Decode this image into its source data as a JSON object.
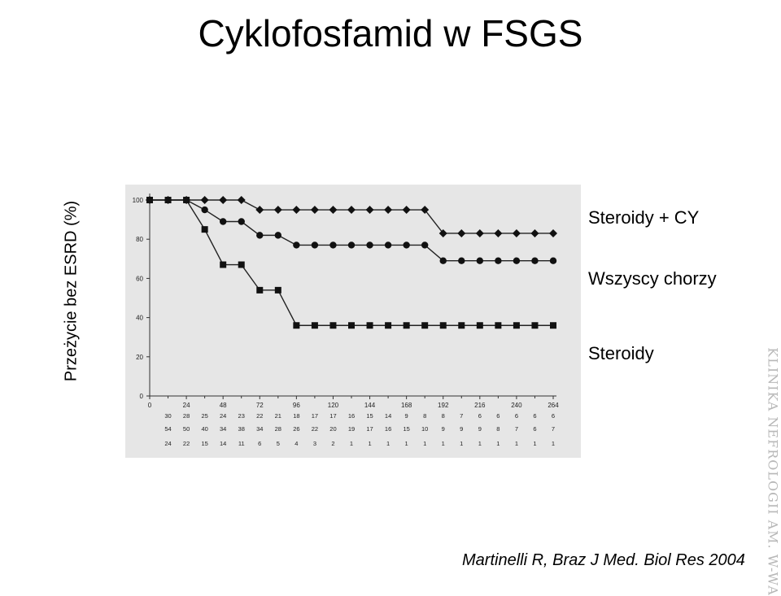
{
  "slide": {
    "title": "Cyklofosfamid w FSGS",
    "citation": "Martinelli R, Braz J Med. Biol Res 2004",
    "watermark": "KLINIKA NEFROLOGII AM. W-WA"
  },
  "chart_data": {
    "type": "line",
    "title": "",
    "xlabel": "",
    "ylabel": "Przeżycie bez ESRD (%)",
    "xlim": [
      0,
      264
    ],
    "ylim": [
      0,
      100
    ],
    "x_ticks": [
      0,
      24,
      48,
      72,
      96,
      120,
      144,
      168,
      192,
      216,
      240,
      264
    ],
    "y_ticks": [
      0,
      20,
      40,
      60,
      80,
      100
    ],
    "grid": false,
    "legend_placement": "right, labels beside line ends",
    "x": [
      0,
      12,
      24,
      36,
      48,
      60,
      72,
      84,
      96,
      108,
      120,
      132,
      144,
      156,
      168,
      180,
      192,
      204,
      216,
      228,
      240,
      252,
      264
    ],
    "series": [
      {
        "name": "Steroidy + CY",
        "marker": "diamond",
        "color": "#222222",
        "values": [
          100,
          100,
          100,
          100,
          100,
          100,
          95,
          95,
          95,
          95,
          95,
          95,
          95,
          95,
          95,
          95,
          83,
          83,
          83,
          83,
          83,
          83,
          83
        ]
      },
      {
        "name": "Wszyscy chorzy",
        "marker": "circle",
        "color": "#222222",
        "values": [
          100,
          100,
          100,
          95,
          89,
          89,
          82,
          82,
          77,
          77,
          77,
          77,
          77,
          77,
          77,
          77,
          69,
          69,
          69,
          69,
          69,
          69,
          69
        ]
      },
      {
        "name": "Steroidy",
        "marker": "square",
        "color": "#222222",
        "values": [
          100,
          100,
          100,
          85,
          67,
          67,
          54,
          54,
          36,
          36,
          36,
          36,
          36,
          36,
          36,
          36,
          36,
          36,
          36,
          36,
          36,
          36,
          36
        ]
      }
    ],
    "at_risk_table": {
      "columns_x": [
        12,
        24,
        36,
        48,
        60,
        72,
        84,
        96,
        108,
        120,
        132,
        144,
        156,
        168,
        180,
        192,
        204,
        216,
        228,
        240,
        252,
        264
      ],
      "rows": [
        [
          "30",
          "28",
          "25",
          "24",
          "23",
          "22",
          "21",
          "18",
          "17",
          "17",
          "16",
          "15",
          "14",
          "9",
          "8",
          "8",
          "7",
          "6",
          "6",
          "6",
          "6",
          "6"
        ],
        [
          "54",
          "50",
          "40",
          "34",
          "38",
          "34",
          "28",
          "26",
          "22",
          "20",
          "19",
          "17",
          "16",
          "15",
          "10",
          "9",
          "9",
          "9",
          "8",
          "7",
          "6",
          "7"
        ],
        [
          "24",
          "22",
          "15",
          "14",
          "11",
          "6",
          "5",
          "4",
          "3",
          "2",
          "1",
          "1",
          "1",
          "1",
          "1",
          "1",
          "1",
          "1",
          "1",
          "1",
          "1",
          "1"
        ]
      ]
    }
  }
}
